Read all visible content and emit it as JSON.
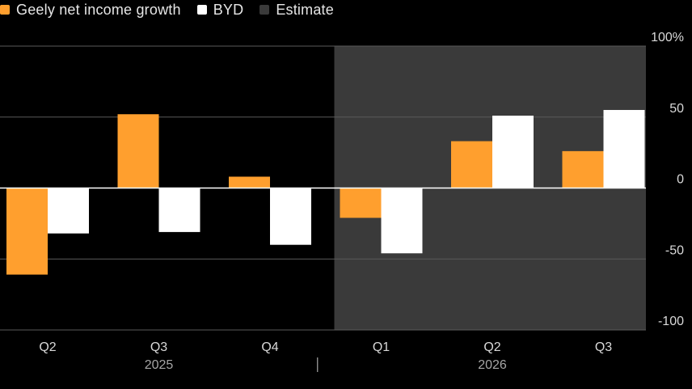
{
  "chart_data": {
    "type": "bar",
    "categories": [
      "Q2",
      "Q3",
      "Q4",
      "Q1",
      "Q2",
      "Q3"
    ],
    "years": [
      {
        "label": "2025",
        "start": 0,
        "end": 2
      },
      {
        "label": "2026",
        "start": 3,
        "end": 5
      }
    ],
    "series": [
      {
        "name": "Geely net income growth",
        "color": "#ff9f2e",
        "values": [
          -61,
          52,
          8,
          -21,
          33,
          26
        ]
      },
      {
        "name": "BYD",
        "color": "#ffffff",
        "values": [
          -32,
          -31,
          -40,
          -46,
          51,
          55
        ]
      }
    ],
    "estimate": {
      "label": "Estimate",
      "color": "#3a3a3a",
      "from_index": 3
    },
    "yticks": [
      {
        "value": 100,
        "label": "100%"
      },
      {
        "value": 50,
        "label": "50"
      },
      {
        "value": 0,
        "label": "0"
      },
      {
        "value": -50,
        "label": "-50"
      },
      {
        "value": -100,
        "label": "-100"
      }
    ],
    "ylim": [
      -100,
      100
    ],
    "grid": true,
    "legend": "top-left"
  }
}
